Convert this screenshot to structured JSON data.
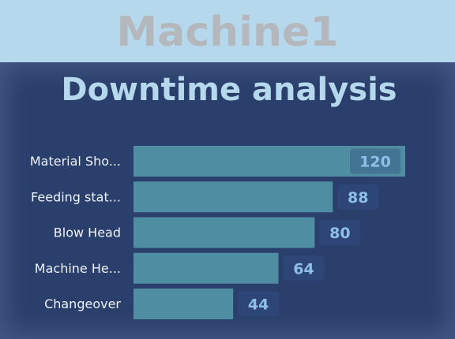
{
  "header": {
    "title": "Machine1"
  },
  "panel": {
    "title": "Downtime analysis"
  },
  "colors": {
    "header_bg": "#b6d8ec",
    "header_text": "#b4b8bc",
    "panel_bg": "#2b3f6c",
    "title_text": "#b6d8ec",
    "bar": "#4f8ea2",
    "value_text": "#8fc0ea",
    "category_text": "#eef2f8"
  },
  "chart_data": {
    "type": "bar",
    "orientation": "horizontal",
    "categories": [
      "Material Sho...",
      "Feeding stat...",
      "Blow Head",
      "Machine He...",
      "Changeover"
    ],
    "values": [
      120,
      88,
      80,
      64,
      44
    ],
    "xlim": [
      0,
      120
    ]
  }
}
